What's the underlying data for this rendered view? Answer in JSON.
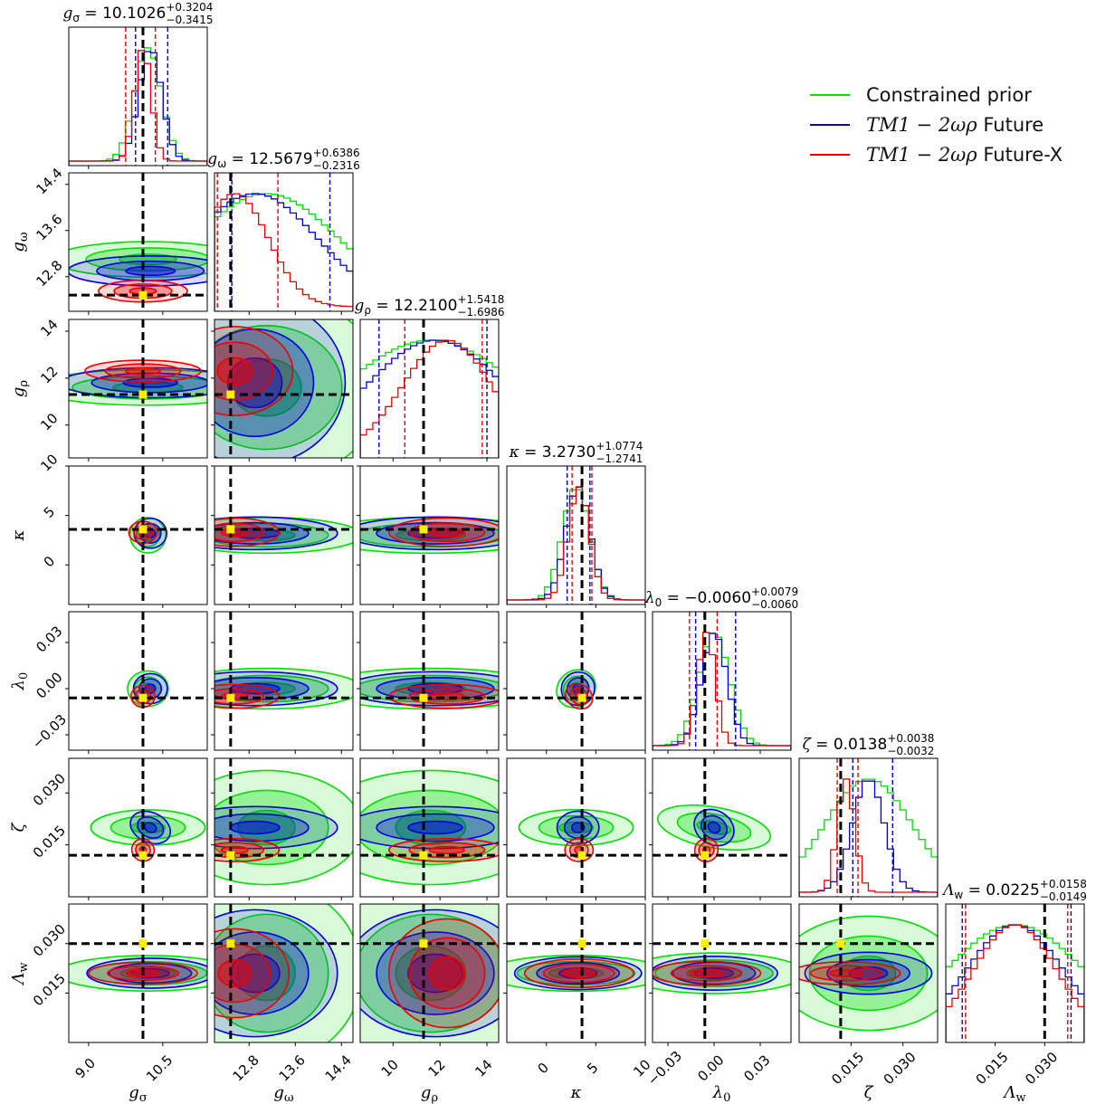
{
  "legend": [
    {
      "math": "TM1 − 2ωρ",
      "label": "Constrained prior",
      "color": "#00e000"
    },
    {
      "math": "TM1 − 2ωρ",
      "label": "Future",
      "color": "#0000dd"
    },
    {
      "math": "TM1 − 2ωρ",
      "label": "Future-X",
      "color": "#ee0000"
    }
  ],
  "chart_data": {
    "type": "corner",
    "parameters": [
      {
        "symbol": "g_σ",
        "base": "g",
        "sub": "σ",
        "title_value": "10.1026",
        "plus": "+0.3204",
        "minus": "−0.3415",
        "range": [
          8.6,
          11.4
        ],
        "ticks": [
          9.0,
          10.5
        ],
        "tick_labels": [
          "9.0",
          "10.5"
        ],
        "truth": 10.1
      },
      {
        "symbol": "g_ω",
        "base": "g",
        "sub": "ω",
        "title_value": "12.5679",
        "plus": "+0.6386",
        "minus": "−0.2316",
        "range": [
          12.2,
          14.6
        ],
        "ticks": [
          12.8,
          13.6,
          14.4
        ],
        "tick_labels": [
          "12.8",
          "13.6",
          "14.4"
        ],
        "truth": 12.48
      },
      {
        "symbol": "g_ρ",
        "base": "g",
        "sub": "ρ",
        "title_value": "12.2100",
        "plus": "+1.5418",
        "minus": "−1.6986",
        "range": [
          8.6,
          14.5
        ],
        "ticks": [
          10,
          12,
          14
        ],
        "tick_labels": [
          "10",
          "12",
          "14"
        ],
        "truth": 11.3
      },
      {
        "symbol": "κ",
        "base": "κ",
        "sub": "",
        "title_value": "3.2730",
        "plus": "+1.0774",
        "minus": "−1.2741",
        "range": [
          -4,
          10
        ],
        "ticks": [
          0,
          5,
          10
        ],
        "tick_labels": [
          "0",
          "5",
          "10"
        ],
        "truth": 3.6
      },
      {
        "symbol": "λ_0",
        "base": "λ",
        "sub": "0",
        "title_value": "−0.0060",
        "plus": "+0.0079",
        "minus": "−0.0060",
        "range": [
          -0.04,
          0.05
        ],
        "ticks": [
          -0.03,
          0.0,
          0.03
        ],
        "tick_labels": [
          "−0.03",
          "0.00",
          "0.03"
        ],
        "truth": -0.006
      },
      {
        "symbol": "ζ",
        "base": "ζ",
        "sub": "",
        "title_value": "0.0138",
        "plus": "+0.0038",
        "minus": "−0.0032",
        "range": [
          0.0,
          0.04
        ],
        "ticks": [
          0.015,
          0.03
        ],
        "tick_labels": [
          "0.015",
          "0.030"
        ],
        "truth": 0.012
      },
      {
        "symbol": "Λ_w",
        "base": "Λ",
        "sub": "w",
        "title_value": "0.0225",
        "plus": "+0.0158",
        "minus": "−0.0149",
        "range": [
          0.0,
          0.042
        ],
        "ticks": [
          0.015,
          0.03
        ],
        "tick_labels": [
          "0.015",
          "0.030"
        ],
        "truth": 0.03
      }
    ],
    "quantile_lines": {
      "Future": [
        [
          9.95,
          10.6
        ],
        [
          12.5,
          14.2
        ],
        [
          9.4,
          14.0
        ],
        [
          2.1,
          4.4
        ],
        [
          -0.012,
          0.014
        ],
        [
          0.0155,
          0.027
        ],
        [
          0.005,
          0.038
        ]
      ],
      "Future-X": [
        [
          9.75,
          10.35
        ],
        [
          12.25,
          13.3
        ],
        [
          10.5,
          13.8
        ],
        [
          2.6,
          4.6
        ],
        [
          -0.016,
          0.002
        ],
        [
          0.011,
          0.017
        ],
        [
          0.006,
          0.037
        ]
      ]
    },
    "series": [
      {
        "name": "Constrained prior",
        "color": "#00e000",
        "centers": [
          10.2,
          13.1,
          11.6,
          3.0,
          0.0,
          0.02,
          0.021
        ],
        "widths": [
          0.65,
          3.0,
          9.0,
          3.3,
          0.024,
          0.03,
          0.05
        ],
        "corr": {
          "3-4": -0.55,
          "4-5": 0.45
        }
      },
      {
        "name": "Future",
        "color": "#0000dd",
        "centers": [
          10.25,
          12.9,
          11.8,
          3.2,
          0.0,
          0.02,
          0.021
        ],
        "widths": [
          0.55,
          2.6,
          7.0,
          3.0,
          0.02,
          0.011,
          0.035
        ],
        "corr": {
          "3-4": -0.6,
          "4-5": 0.45,
          "0-5": 0.4
        }
      },
      {
        "name": "Future-X",
        "color": "#ee0000",
        "centers": [
          10.1,
          12.55,
          12.3,
          3.3,
          -0.005,
          0.0135,
          0.021
        ],
        "widths": [
          0.4,
          1.4,
          4.5,
          2.6,
          0.014,
          0.006,
          0.03
        ],
        "corr": {
          "3-4": -0.5,
          "4-5": 0.35,
          "0-5": 0.3
        }
      }
    ]
  }
}
